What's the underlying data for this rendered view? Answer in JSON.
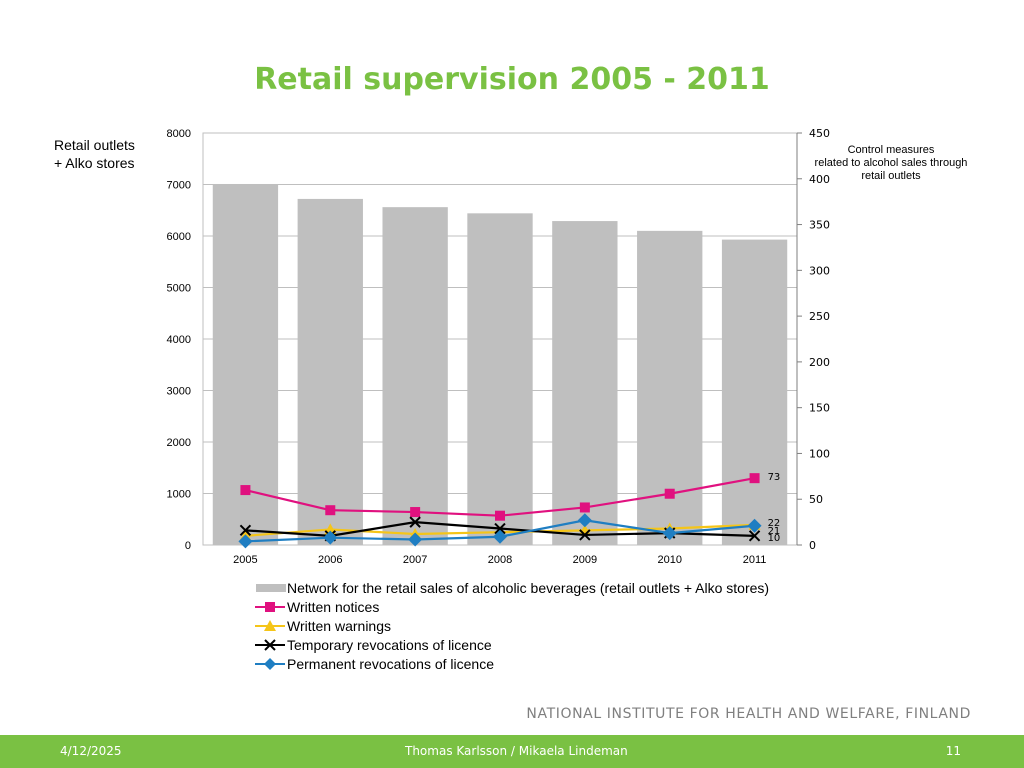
{
  "slide": {
    "title": "Retail supervision 2005 - 2011",
    "institute": "NATIONAL INSTITUTE FOR HEALTH AND WELFARE, FINLAND",
    "date": "4/12/2025",
    "authors": "Thomas Karlsson / Mikaela Lindeman",
    "page_number": "11",
    "accent_color": "#7ac143"
  },
  "chart_data": {
    "type": "bar",
    "categories": [
      "2005",
      "2006",
      "2007",
      "2008",
      "2009",
      "2010",
      "2011"
    ],
    "ylabel": "Retail outlets\n+ Alko stores",
    "ylabel_right": "Control measures\nrelated to alcohol sales through\nretail outlets",
    "ylim": [
      0,
      8000
    ],
    "yticks": [
      0,
      1000,
      2000,
      3000,
      4000,
      5000,
      6000,
      7000,
      8000
    ],
    "ylim_right": [
      0,
      450
    ],
    "yticks_right": [
      0,
      50,
      100,
      150,
      200,
      250,
      300,
      350,
      400,
      450
    ],
    "grid": true,
    "legend_position": "bottom",
    "series": [
      {
        "name": "Network for the retail sales of alcoholic beverages (retail outlets + Alko stores)",
        "type": "bar",
        "axis": "left",
        "color": "#bfbfbf",
        "values": [
          7010,
          6720,
          6560,
          6440,
          6290,
          6100,
          5930
        ]
      },
      {
        "name": "Written notices",
        "type": "line",
        "axis": "right",
        "color": "#e0117f",
        "marker": "square",
        "values": [
          60,
          38,
          36,
          32,
          41,
          56,
          73
        ],
        "data_labels": {
          "6": "73"
        }
      },
      {
        "name": "Written warnings",
        "type": "line",
        "axis": "right",
        "color": "#f5c518",
        "marker": "triangle",
        "values": [
          10,
          17,
          12,
          14,
          16,
          18,
          22
        ],
        "data_labels": {
          "6": "22"
        }
      },
      {
        "name": "Temporary revocations of licence",
        "type": "line",
        "axis": "right",
        "color": "#000000",
        "marker": "x",
        "values": [
          16,
          10,
          25,
          18,
          11,
          13,
          10
        ],
        "data_labels": {
          "6": "10"
        }
      },
      {
        "name": "Permanent revocations of licence",
        "type": "line",
        "axis": "right",
        "color": "#1f7ec2",
        "marker": "diamond",
        "values": [
          4,
          8,
          6,
          9,
          27,
          13,
          21
        ],
        "data_labels": {
          "6": "21"
        }
      }
    ]
  }
}
